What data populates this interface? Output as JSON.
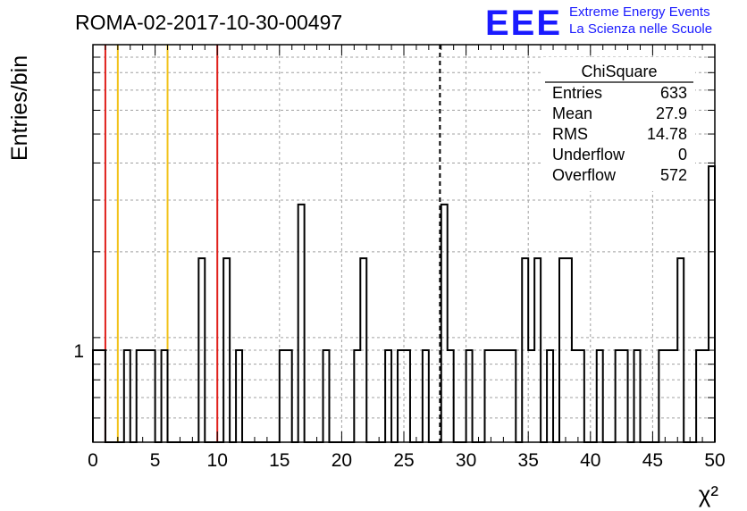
{
  "chart_data": {
    "type": "histogram",
    "title": "ROMA-02-2017-10-30-00497",
    "xlabel": "χ²",
    "ylabel": "Entries/bin",
    "x_scale": "linear",
    "y_scale": "log",
    "xlim": [
      0,
      50
    ],
    "ylim": [
      0.5,
      10
    ],
    "x_ticks": [
      0,
      5,
      10,
      15,
      20,
      25,
      30,
      35,
      40,
      45,
      50
    ],
    "y_tick_labels": [
      "1"
    ],
    "grid": true,
    "bin_width": 0.5,
    "bins": [
      {
        "x0": 0.0,
        "x1": 1.0,
        "count": 1
      },
      {
        "x0": 2.5,
        "x1": 3.0,
        "count": 1
      },
      {
        "x0": 3.5,
        "x1": 5.0,
        "count": 1
      },
      {
        "x0": 5.5,
        "x1": 6.0,
        "count": 1
      },
      {
        "x0": 8.5,
        "x1": 9.0,
        "count": 2
      },
      {
        "x0": 10.5,
        "x1": 11.0,
        "count": 2
      },
      {
        "x0": 11.5,
        "x1": 12.0,
        "count": 1
      },
      {
        "x0": 15.0,
        "x1": 16.0,
        "count": 1
      },
      {
        "x0": 16.5,
        "x1": 17.0,
        "count": 3
      },
      {
        "x0": 18.5,
        "x1": 19.0,
        "count": 1
      },
      {
        "x0": 21.0,
        "x1": 21.5,
        "count": 1
      },
      {
        "x0": 21.5,
        "x1": 22.0,
        "count": 2
      },
      {
        "x0": 23.5,
        "x1": 24.0,
        "count": 1
      },
      {
        "x0": 24.5,
        "x1": 25.5,
        "count": 1
      },
      {
        "x0": 26.5,
        "x1": 27.0,
        "count": 1
      },
      {
        "x0": 28.0,
        "x1": 28.5,
        "count": 3
      },
      {
        "x0": 28.5,
        "x1": 29.0,
        "count": 1
      },
      {
        "x0": 30.0,
        "x1": 30.5,
        "count": 1
      },
      {
        "x0": 31.5,
        "x1": 34.0,
        "count": 1
      },
      {
        "x0": 34.5,
        "x1": 35.0,
        "count": 2
      },
      {
        "x0": 35.0,
        "x1": 35.5,
        "count": 1
      },
      {
        "x0": 35.5,
        "x1": 36.0,
        "count": 2
      },
      {
        "x0": 36.5,
        "x1": 37.0,
        "count": 1
      },
      {
        "x0": 37.5,
        "x1": 38.5,
        "count": 2
      },
      {
        "x0": 38.5,
        "x1": 39.5,
        "count": 1
      },
      {
        "x0": 40.5,
        "x1": 41.0,
        "count": 1
      },
      {
        "x0": 42.0,
        "x1": 43.0,
        "count": 1
      },
      {
        "x0": 43.5,
        "x1": 44.0,
        "count": 1
      },
      {
        "x0": 45.5,
        "x1": 47.0,
        "count": 1
      },
      {
        "x0": 47.0,
        "x1": 47.5,
        "count": 2
      },
      {
        "x0": 48.5,
        "x1": 49.5,
        "count": 1
      },
      {
        "x0": 49.5,
        "x1": 50.0,
        "count": 4
      }
    ],
    "vertical_lines": [
      {
        "x": 1,
        "color": "#e0201b"
      },
      {
        "x": 2,
        "color": "#f2c21a"
      },
      {
        "x": 6,
        "color": "#f2c21a"
      },
      {
        "x": 10,
        "color": "#e0201b"
      },
      {
        "x": 27.9,
        "color": "#000000",
        "dashed": true
      }
    ],
    "stats_box": {
      "title": "ChiSquare",
      "rows": [
        {
          "label": "Entries",
          "value": "633"
        },
        {
          "label": "Mean",
          "value": "27.9"
        },
        {
          "label": "RMS",
          "value": "14.78"
        },
        {
          "label": "Underflow",
          "value": "0"
        },
        {
          "label": "Overflow",
          "value": "572"
        }
      ]
    }
  },
  "logo": {
    "mark": "EEE",
    "line1": "Extreme Energy Events",
    "line2": "La Scienza nelle Scuole",
    "color": "#1a1aff"
  }
}
